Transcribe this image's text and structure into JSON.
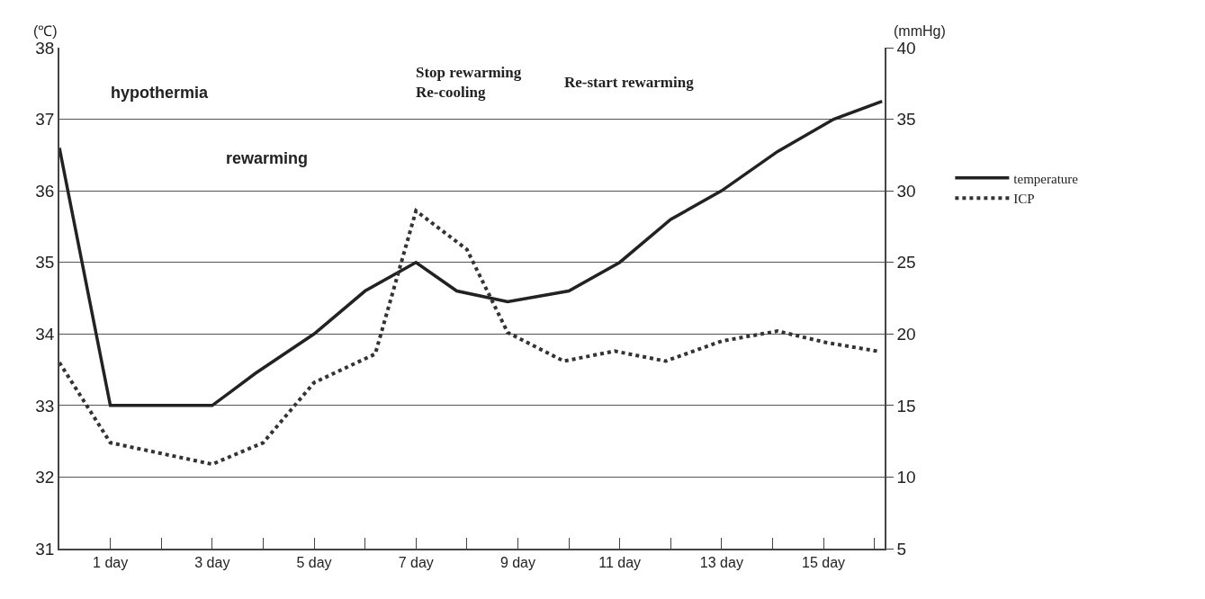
{
  "chart_data": {
    "type": "line",
    "ylabel": "(℃)",
    "y2label": "(mmHg)",
    "annotations": [
      "hypothermia",
      "rewarming",
      "Stop rewarming\nRe-cooling",
      "Re-start rewarming"
    ],
    "xlim": [
      0,
      16.2
    ],
    "xticks": [
      {
        "value": 1,
        "label": "1 day"
      },
      {
        "value": 2,
        "label": null
      },
      {
        "value": 3,
        "label": "3 day"
      },
      {
        "value": 4,
        "label": null
      },
      {
        "value": 5,
        "label": "5 day"
      },
      {
        "value": 6,
        "label": null
      },
      {
        "value": 7,
        "label": "7 day"
      },
      {
        "value": 8,
        "label": null
      },
      {
        "value": 9,
        "label": "9 day"
      },
      {
        "value": 10,
        "label": null
      },
      {
        "value": 11,
        "label": "11 day"
      },
      {
        "value": 12,
        "label": null
      },
      {
        "value": 13,
        "label": "13 day"
      },
      {
        "value": 14,
        "label": null
      },
      {
        "value": 15,
        "label": "15 day"
      },
      {
        "value": 16,
        "label": null
      }
    ],
    "ylim": [
      31,
      38
    ],
    "yticks": [
      31,
      32,
      33,
      34,
      35,
      36,
      37,
      38
    ],
    "y2lim": [
      5,
      40
    ],
    "y2ticks": [
      5,
      10,
      15,
      20,
      25,
      30,
      35,
      40
    ],
    "grid": "y",
    "legend": "right",
    "marker": "none",
    "series": [
      {
        "name": "temperature",
        "color": "#222222",
        "line_style": "solid",
        "x": [
          0,
          1,
          3,
          3.85,
          5,
          6,
          7,
          7.8,
          8.8,
          10,
          11,
          12,
          13,
          14.1,
          15.2,
          16.15
        ],
        "values": [
          36.6,
          33.0,
          33.0,
          33.45,
          34.0,
          34.6,
          35.0,
          34.6,
          34.45,
          34.6,
          35.0,
          35.6,
          36.0,
          36.55,
          37.0,
          37.25
        ]
      },
      {
        "name": "ICP",
        "color": "#333333",
        "line_style": "dotted",
        "axis": "y2",
        "x": [
          0,
          1,
          3,
          4,
          5,
          6.2,
          7,
          8,
          8.8,
          9.9,
          10.9,
          11.9,
          13,
          14.1,
          15.05,
          16.05
        ],
        "values": [
          18.0,
          12.4,
          10.9,
          12.4,
          16.6,
          18.6,
          28.6,
          25.9,
          20.1,
          18.1,
          18.8,
          18.1,
          19.5,
          20.2,
          19.4,
          18.8
        ]
      }
    ]
  }
}
